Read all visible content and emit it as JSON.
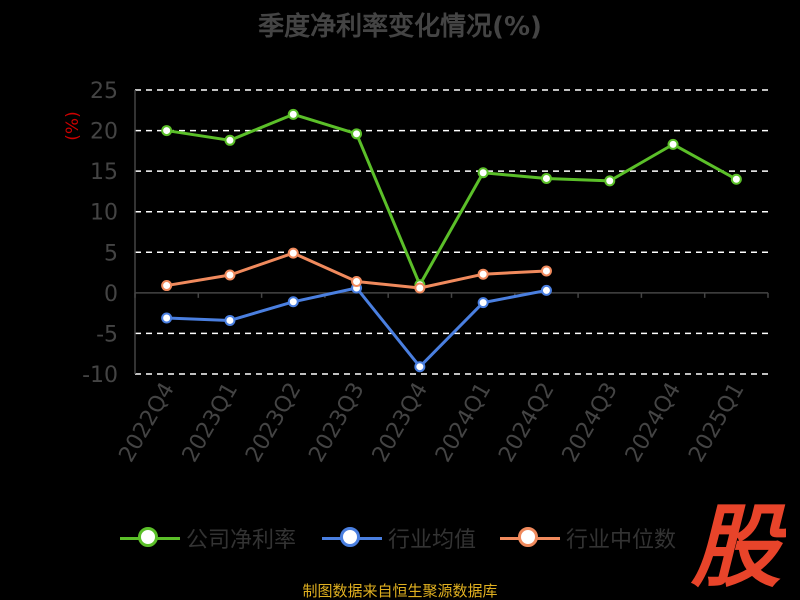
{
  "chart_data": {
    "type": "line",
    "title": "季度净利率变化情况(%)",
    "ylabel": "(%)",
    "ylim": [
      -10,
      25
    ],
    "yticks": [
      25,
      20,
      15,
      10,
      5,
      0,
      -5,
      -10
    ],
    "categories": [
      "2022Q4",
      "2023Q1",
      "2023Q2",
      "2023Q3",
      "2023Q4",
      "2024Q1",
      "2024Q2",
      "2024Q3",
      "2024Q4",
      "2025Q1"
    ],
    "grid": true,
    "legend_position": "bottom",
    "series": [
      {
        "name": "公司净利率",
        "color": "#5bbf29",
        "values": [
          20.0,
          18.8,
          22.0,
          19.6,
          1.0,
          14.8,
          14.1,
          13.8,
          18.3,
          14.0
        ]
      },
      {
        "name": "行业均值",
        "color": "#4a7fe0",
        "values": [
          -3.1,
          -3.4,
          -1.1,
          0.6,
          -9.1,
          -1.2,
          0.3,
          null,
          null,
          null
        ]
      },
      {
        "name": "行业中位数",
        "color": "#f08a5d",
        "values": [
          0.9,
          2.2,
          4.9,
          1.4,
          0.6,
          2.3,
          2.7,
          null,
          null,
          null
        ]
      }
    ]
  },
  "footer": {
    "source": "制图数据来自恒生聚源数据库"
  },
  "logo": {
    "text": "股",
    "color": "#e8442a"
  }
}
